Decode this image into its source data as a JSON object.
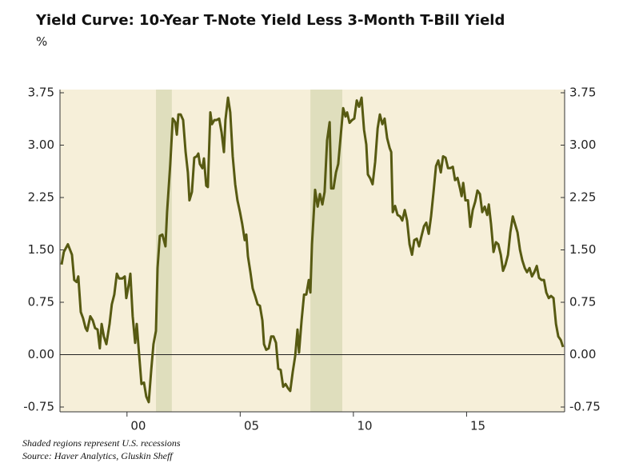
{
  "chart_data": {
    "type": "line",
    "title": "Yield Curve: 10-Year T-Note Yield Less 3-Month T-Bill Yield",
    "subtitle": "%",
    "notes": [
      "Shaded regions represent U.S. recessions",
      "Source: Haver Analytics, Gluskin Sheff"
    ],
    "color": "#575a12",
    "shade_color": "#dfdebd",
    "background": "#f6efd9",
    "shaded_regions": [
      [
        2001.28,
        2001.98
      ],
      [
        2008.1,
        2009.51
      ]
    ],
    "xlim": [
      1997.04,
      2019.33
    ],
    "xticks": [
      {
        "value": 2000,
        "label": "00"
      },
      {
        "value": 2005,
        "label": "05"
      },
      {
        "value": 2010,
        "label": "10"
      },
      {
        "value": 2015,
        "label": "15"
      }
    ],
    "ylim": [
      -0.75,
      3.75
    ],
    "yticks": [
      3.75,
      {
        "value": 3,
        "label": "3.00"
      },
      2.25,
      {
        "value": 1.5,
        "label": "1.50"
      },
      0.75,
      {
        "value": 0,
        "label": "0.00"
      },
      -0.75
    ],
    "y2lim": [
      -0.75,
      3.75
    ],
    "y2ticks": [
      3.75,
      {
        "value": 3,
        "label": "3.00"
      },
      2.25,
      {
        "value": 1.5,
        "label": "1.50"
      },
      0.75,
      {
        "value": 0,
        "label": "0.00"
      },
      -0.75
    ],
    "x": [
      1997.11,
      1997.21,
      1997.39,
      1997.57,
      1997.67,
      1997.78,
      1997.85,
      1997.96,
      1998.06,
      1998.17,
      1998.24,
      1998.38,
      1998.49,
      1998.59,
      1998.7,
      1998.8,
      1998.88,
      1998.98,
      1999.09,
      1999.23,
      1999.33,
      1999.44,
      1999.55,
      1999.65,
      1999.79,
      1999.9,
      1999.97,
      2000.08,
      2000.15,
      2000.25,
      2000.36,
      2000.43,
      2000.54,
      2000.64,
      2000.75,
      2000.85,
      2000.96,
      2001.07,
      2001.17,
      2001.28,
      2001.35,
      2001.45,
      2001.56,
      2001.63,
      2001.7,
      2001.77,
      2001.91,
      2002.02,
      2002.13,
      2002.2,
      2002.27,
      2002.37,
      2002.48,
      2002.59,
      2002.69,
      2002.76,
      2002.87,
      2002.97,
      2003.08,
      2003.15,
      2003.22,
      2003.33,
      2003.4,
      2003.5,
      2003.57,
      2003.68,
      2003.75,
      2003.86,
      2003.96,
      2004.07,
      2004.18,
      2004.28,
      2004.35,
      2004.46,
      2004.56,
      2004.67,
      2004.78,
      2004.88,
      2004.99,
      2005.09,
      2005.2,
      2005.27,
      2005.34,
      2005.45,
      2005.55,
      2005.66,
      2005.77,
      2005.87,
      2005.98,
      2006.05,
      2006.15,
      2006.26,
      2006.37,
      2006.47,
      2006.58,
      2006.68,
      2006.79,
      2006.9,
      2007.0,
      2007.11,
      2007.21,
      2007.32,
      2007.43,
      2007.53,
      2007.6,
      2007.71,
      2007.82,
      2007.92,
      2008.03,
      2008.1,
      2008.17,
      2008.31,
      2008.42,
      2008.52,
      2008.63,
      2008.73,
      2008.84,
      2008.95,
      2009.02,
      2009.12,
      2009.23,
      2009.33,
      2009.44,
      2009.55,
      2009.65,
      2009.72,
      2009.83,
      2009.94,
      2010.04,
      2010.15,
      2010.25,
      2010.36,
      2010.47,
      2010.57,
      2010.64,
      2010.75,
      2010.85,
      2010.96,
      2011.07,
      2011.17,
      2011.28,
      2011.38,
      2011.49,
      2011.6,
      2011.67,
      2011.74,
      2011.84,
      2011.95,
      2012.06,
      2012.16,
      2012.27,
      2012.37,
      2012.48,
      2012.59,
      2012.69,
      2012.8,
      2012.9,
      2013.01,
      2013.12,
      2013.22,
      2013.33,
      2013.43,
      2013.54,
      2013.65,
      2013.75,
      2013.86,
      2013.96,
      2014.07,
      2014.18,
      2014.28,
      2014.39,
      2014.49,
      2014.6,
      2014.71,
      2014.78,
      2014.85,
      2014.95,
      2015.06,
      2015.16,
      2015.27,
      2015.38,
      2015.48,
      2015.59,
      2015.69,
      2015.8,
      2015.91,
      2015.98,
      2016.08,
      2016.19,
      2016.3,
      2016.4,
      2016.51,
      2016.61,
      2016.72,
      2016.83,
      2016.93,
      2017.04,
      2017.14,
      2017.25,
      2017.36,
      2017.46,
      2017.57,
      2017.67,
      2017.78,
      2017.89,
      2017.99,
      2018.1,
      2018.2,
      2018.31,
      2018.42,
      2018.52,
      2018.63,
      2018.73,
      2018.84,
      2018.95,
      2019.05,
      2019.16,
      2019.26
    ],
    "values": [
      1.29,
      1.47,
      1.58,
      1.43,
      1.07,
      1.04,
      1.12,
      0.61,
      0.52,
      0.38,
      0.34,
      0.55,
      0.49,
      0.38,
      0.36,
      0.09,
      0.44,
      0.26,
      0.15,
      0.44,
      0.72,
      0.86,
      1.16,
      1.09,
      1.09,
      1.12,
      0.81,
      1.01,
      1.16,
      0.55,
      0.17,
      0.44,
      -0.02,
      -0.42,
      -0.4,
      -0.6,
      -0.68,
      -0.22,
      0.15,
      0.34,
      1.24,
      1.7,
      1.72,
      1.64,
      1.55,
      2.04,
      2.73,
      3.38,
      3.33,
      3.15,
      3.44,
      3.44,
      3.36,
      2.9,
      2.61,
      2.21,
      2.33,
      2.82,
      2.84,
      2.88,
      2.73,
      2.67,
      2.81,
      2.42,
      2.4,
      3.47,
      3.3,
      3.36,
      3.36,
      3.38,
      3.18,
      2.9,
      3.36,
      3.68,
      3.47,
      2.84,
      2.44,
      2.21,
      2.04,
      1.87,
      1.64,
      1.72,
      1.41,
      1.18,
      0.95,
      0.84,
      0.72,
      0.7,
      0.49,
      0.15,
      0.07,
      0.09,
      0.26,
      0.26,
      0.17,
      -0.2,
      -0.22,
      -0.46,
      -0.42,
      -0.48,
      -0.52,
      -0.25,
      -0.02,
      0.36,
      0.03,
      0.49,
      0.86,
      0.86,
      1.07,
      0.89,
      1.58,
      2.36,
      2.12,
      2.3,
      2.15,
      2.33,
      3.07,
      3.33,
      2.38,
      2.38,
      2.61,
      2.73,
      3.13,
      3.53,
      3.41,
      3.47,
      3.32,
      3.36,
      3.38,
      3.64,
      3.55,
      3.68,
      3.22,
      3.01,
      2.58,
      2.52,
      2.44,
      2.76,
      3.24,
      3.44,
      3.3,
      3.38,
      3.1,
      2.96,
      2.9,
      2.04,
      2.13,
      2.0,
      1.98,
      1.92,
      2.07,
      1.92,
      1.58,
      1.43,
      1.64,
      1.66,
      1.55,
      1.7,
      1.84,
      1.89,
      1.73,
      1.98,
      2.33,
      2.7,
      2.78,
      2.61,
      2.84,
      2.82,
      2.67,
      2.67,
      2.69,
      2.5,
      2.53,
      2.38,
      2.27,
      2.46,
      2.21,
      2.21,
      1.83,
      2.07,
      2.19,
      2.35,
      2.3,
      2.04,
      2.12,
      2.0,
      2.15,
      1.87,
      1.47,
      1.61,
      1.58,
      1.43,
      1.2,
      1.29,
      1.43,
      1.75,
      1.98,
      1.87,
      1.75,
      1.5,
      1.35,
      1.24,
      1.18,
      1.24,
      1.12,
      1.18,
      1.27,
      1.1,
      1.07,
      1.07,
      0.89,
      0.81,
      0.84,
      0.81,
      0.44,
      0.26,
      0.21,
      0.11
    ]
  }
}
